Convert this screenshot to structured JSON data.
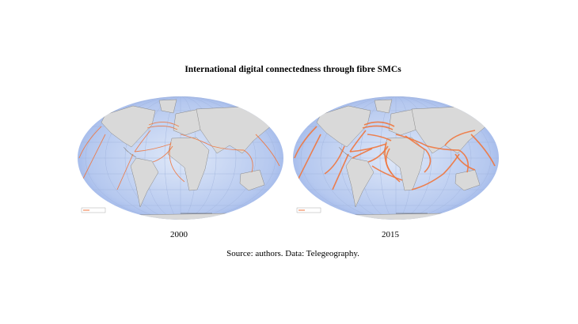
{
  "title": "International digital connectedness through fibre SMCs",
  "panels": [
    {
      "label": "2000"
    },
    {
      "label": "2015"
    }
  ],
  "source": "Source: authors. Data: Telegeography."
}
